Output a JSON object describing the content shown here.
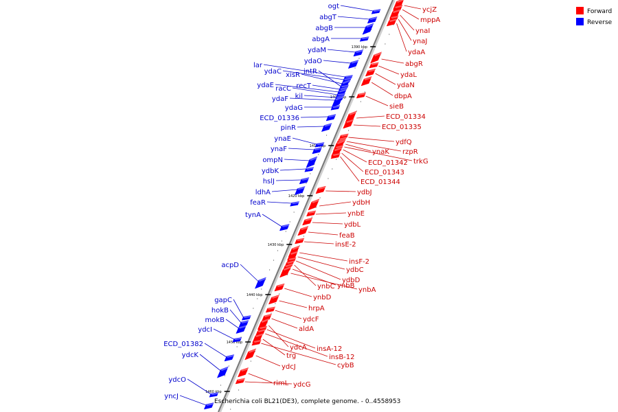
{
  "caption": "Escherichia coli BL21(DE3), complete genome. - 0..4558953",
  "legend": [
    {
      "label": "Forward",
      "color": "#ff0000"
    },
    {
      "label": "Reverse",
      "color": "#0000ff"
    }
  ],
  "ticks": [
    "1390 kbp",
    "1400 kbp",
    "1410 kbp",
    "1420 kbp",
    "1430 kbp",
    "1440 kbp",
    "1450 kbp",
    "1460 kbp"
  ],
  "forward_genes": [
    "ycjZ",
    "mppA",
    "ynaI",
    "ynaJ",
    "ydaA",
    "abgR",
    "ydaL",
    "ydaN",
    "dbpA",
    "sieB",
    "ECD_01334",
    "ECD_01335",
    "ydfQ",
    "rzpR",
    "ynaK",
    "trkG",
    "ECD_01342",
    "ECD_01343",
    "ECD_01344",
    "ydbJ",
    "ydbH",
    "ynbE",
    "ydbL",
    "feaB",
    "insE-2",
    "insF-2",
    "ydbC",
    "ydbD",
    "ynbC",
    "ynbB",
    "ynbA",
    "ynbD",
    "hrpA",
    "ydcF",
    "aldA",
    "ydcA",
    "insA-12",
    "insB-12",
    "trg",
    "cybB",
    "ydcJ",
    "rimL",
    "ydcG"
  ],
  "reverse_genes": [
    "ogt",
    "abgT",
    "abgB",
    "abgA",
    "ydaM",
    "ydaO",
    "lar",
    "ydaC",
    "xisR",
    "intR",
    "recT",
    "ydaE",
    "racC",
    "kil",
    "ydaF",
    "ydaG",
    "ECD_01336",
    "pinR",
    "ynaE",
    "ynaF",
    "ompN",
    "ydbK",
    "hslJ",
    "ldhA",
    "feaR",
    "tynA",
    "acpD",
    "gapC",
    "hokB",
    "mokB",
    "ydcI",
    "ECD_01382",
    "ydcK",
    "ydcO",
    "yncJ"
  ]
}
